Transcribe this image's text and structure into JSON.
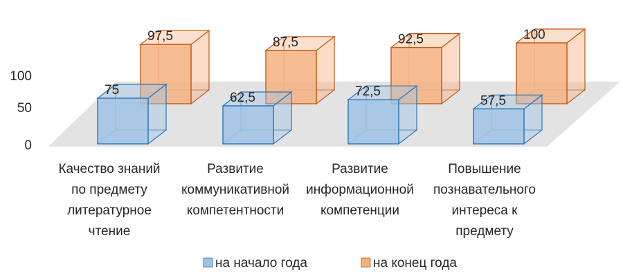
{
  "chart_data": {
    "type": "bar",
    "categories": [
      [
        "Качество знаний",
        "по предмету",
        "литературное",
        "чтение"
      ],
      [
        "Развитие",
        "коммуникативной",
        "компетентности"
      ],
      [
        "Развитие",
        "информационной",
        "компетенции"
      ],
      [
        "Повышение",
        "познавательного",
        "интереса к",
        "предмету"
      ]
    ],
    "series": [
      {
        "name": "на начало года",
        "values": [
          "75",
          "62,5",
          "72,5",
          "57,5"
        ],
        "numeric": [
          75,
          62.5,
          72.5,
          57.5
        ],
        "color": "#9DC3E6",
        "edge": "#2E75B6"
      },
      {
        "name": "на конец года",
        "values": [
          "97,5",
          "87,5",
          "92,5",
          "100"
        ],
        "numeric": [
          97.5,
          87.5,
          92.5,
          100
        ],
        "color": "#F4B183",
        "edge": "#C55A11"
      }
    ],
    "yticks": [
      "0",
      "50",
      "100"
    ],
    "ylim": [
      0,
      100
    ],
    "grid": false,
    "legend": "bottom",
    "style": "3d-clustered-column"
  }
}
